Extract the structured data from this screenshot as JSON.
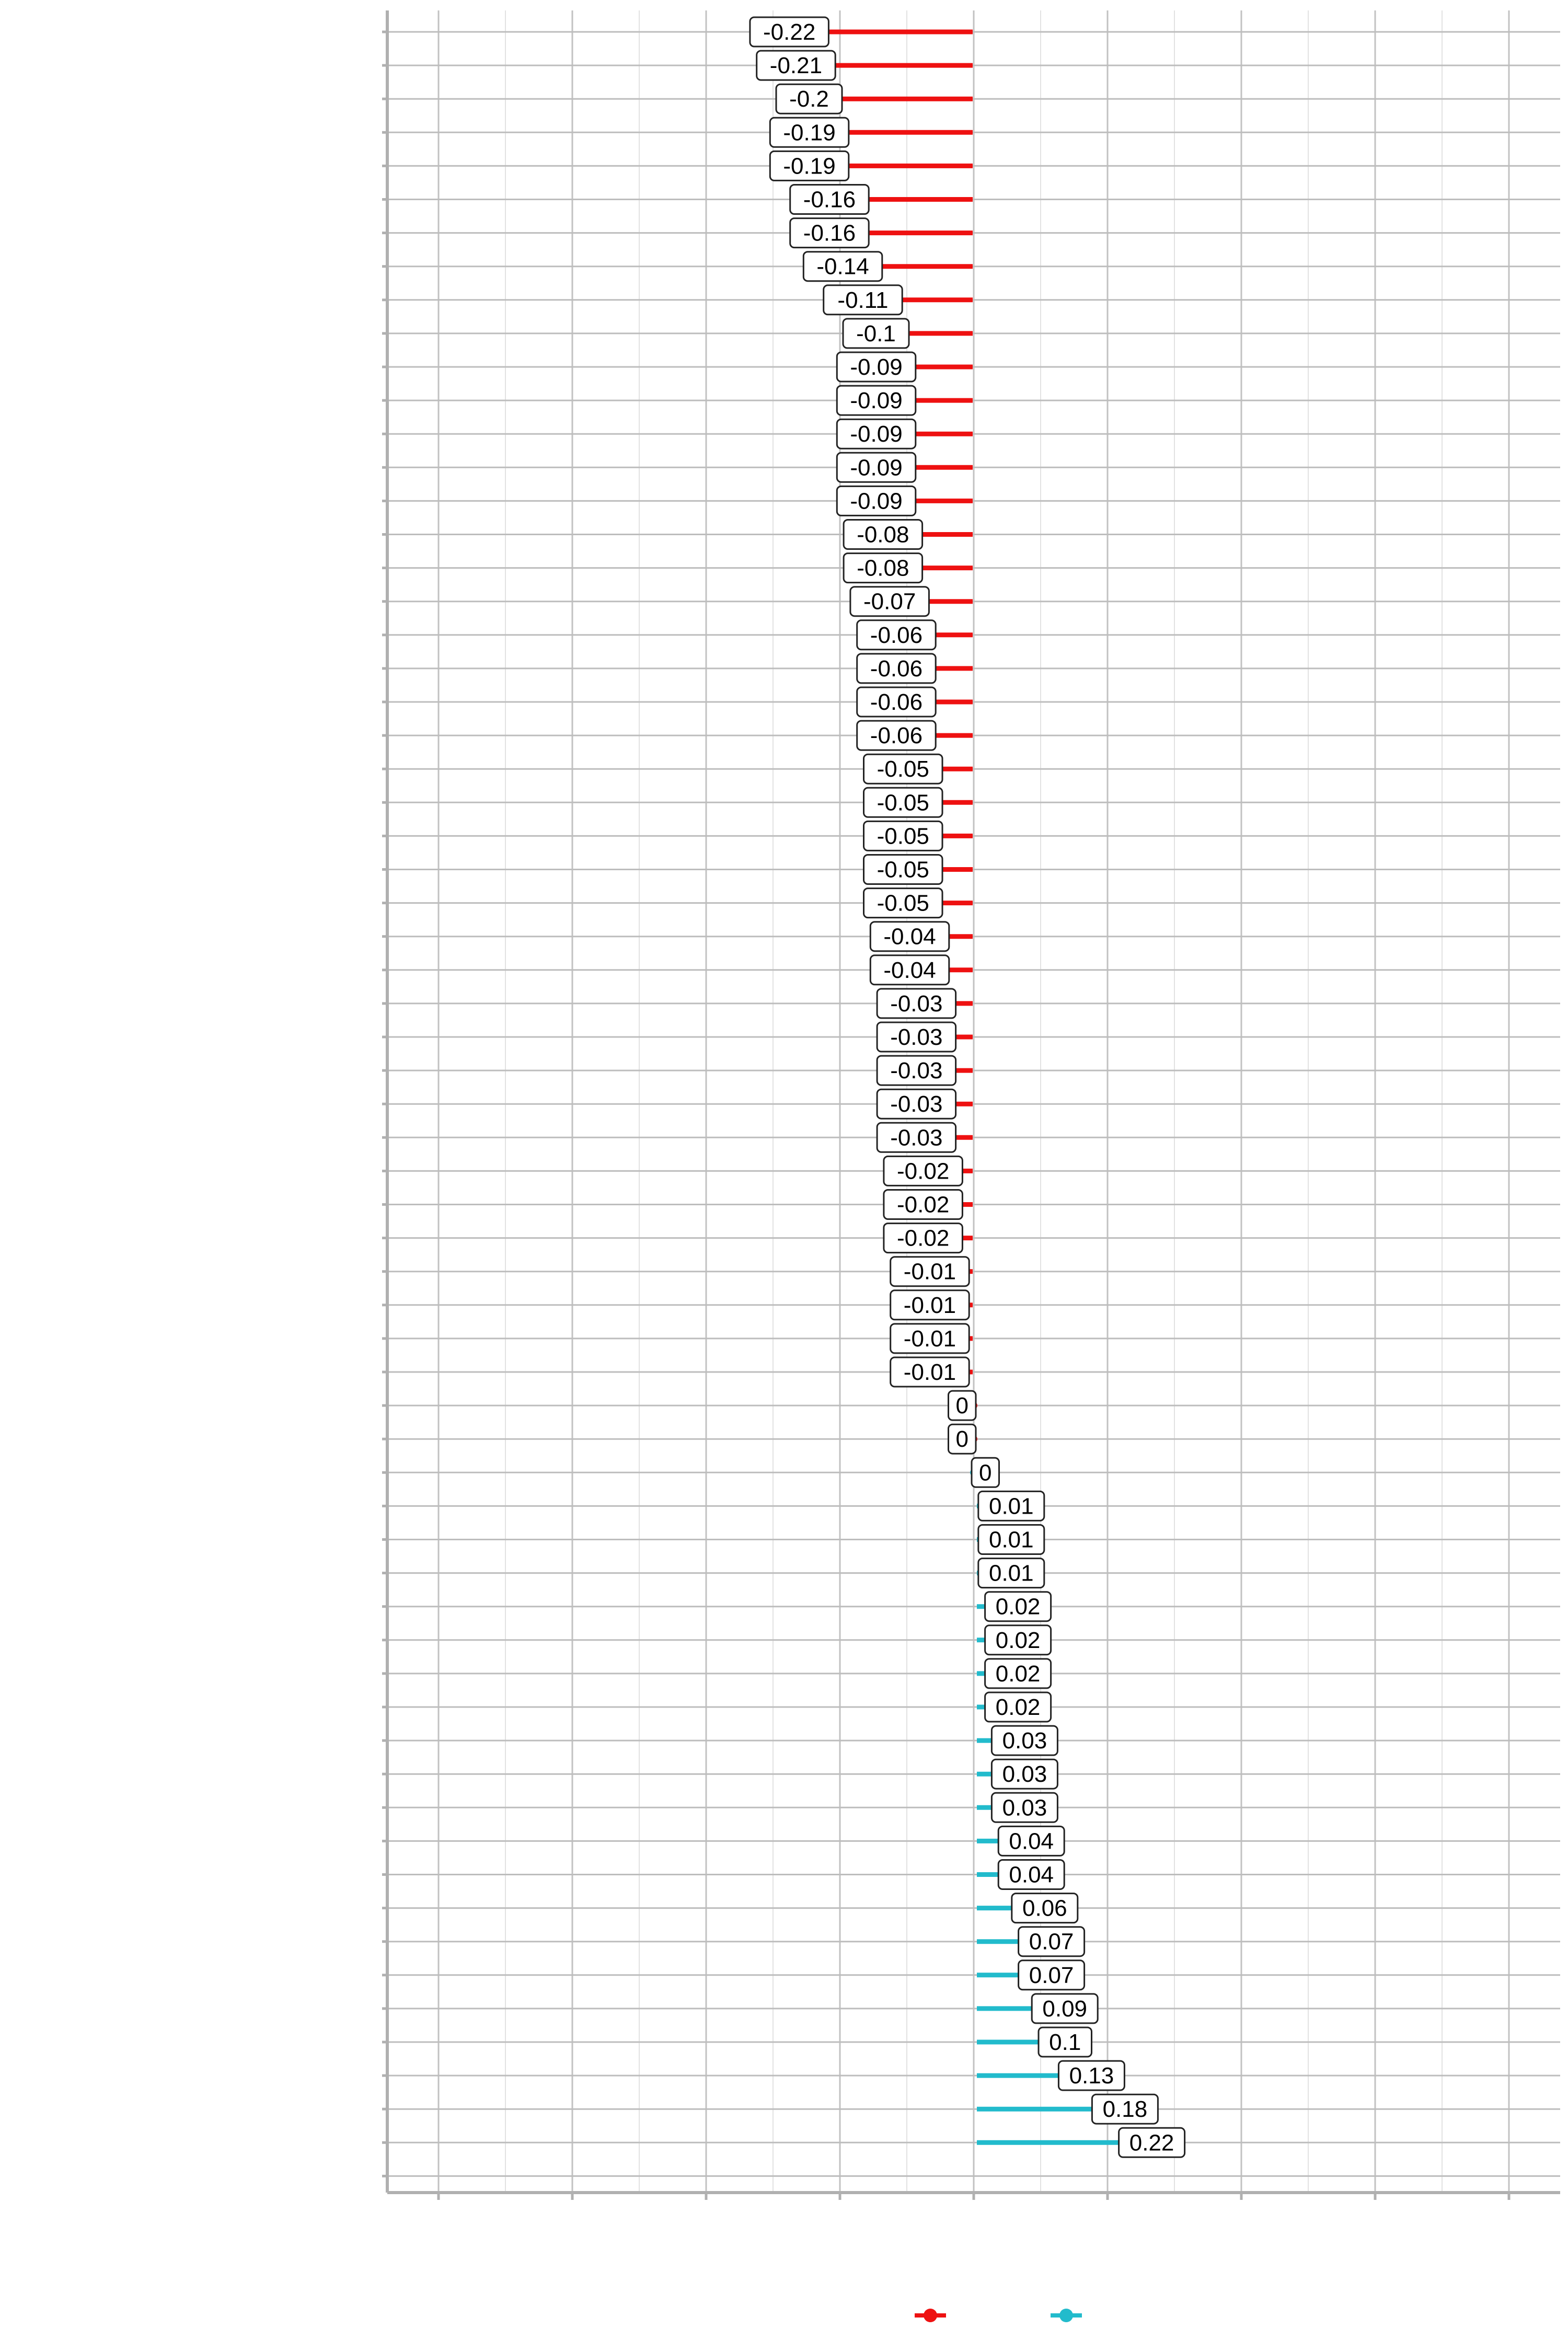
{
  "chart_data": {
    "type": "lollipop",
    "orientation": "horizontal",
    "title": "",
    "xlabel": "",
    "ylabel": "",
    "xlim": [
      -1.0,
      1.0
    ],
    "values": [
      -0.22,
      -0.21,
      -0.2,
      -0.19,
      -0.19,
      -0.16,
      -0.16,
      -0.14,
      -0.11,
      -0.1,
      -0.09,
      -0.09,
      -0.09,
      -0.09,
      -0.09,
      -0.08,
      -0.08,
      -0.07,
      -0.06,
      -0.06,
      -0.06,
      -0.06,
      -0.05,
      -0.05,
      -0.05,
      -0.05,
      -0.05,
      -0.04,
      -0.04,
      -0.03,
      -0.03,
      -0.03,
      -0.03,
      -0.03,
      -0.02,
      -0.02,
      -0.02,
      -0.01,
      -0.01,
      -0.01,
      -0.01,
      0,
      0,
      0,
      0.01,
      0.01,
      0.01,
      0.02,
      0.02,
      0.02,
      0.02,
      0.03,
      0.03,
      0.03,
      0.04,
      0.04,
      0.06,
      0.07,
      0.07,
      0.09,
      0.1,
      0.13,
      0.18,
      0.22
    ],
    "labels": [
      "-0.22",
      "-0.21",
      "-0.2",
      "-0.19",
      "-0.19",
      "-0.16",
      "-0.16",
      "-0.14",
      "-0.11",
      "-0.1",
      "-0.09",
      "-0.09",
      "-0.09",
      "-0.09",
      "-0.09",
      "-0.08",
      "-0.08",
      "-0.07",
      "-0.06",
      "-0.06",
      "-0.06",
      "-0.06",
      "-0.05",
      "-0.05",
      "-0.05",
      "-0.05",
      "-0.05",
      "-0.04",
      "-0.04",
      "-0.03",
      "-0.03",
      "-0.03",
      "-0.03",
      "-0.03",
      "-0.02",
      "-0.02",
      "-0.02",
      "-0.01",
      "-0.01",
      "-0.01",
      "-0.01",
      "0",
      "0",
      "0",
      "0.01",
      "0.01",
      "0.01",
      "0.02",
      "0.02",
      "0.02",
      "0.02",
      "0.03",
      "0.03",
      "0.03",
      "0.04",
      "0.04",
      "0.06",
      "0.07",
      "0.07",
      "0.09",
      "0.1",
      "0.13",
      "0.18",
      "0.22"
    ],
    "negative_count": 43,
    "colors": {
      "negative": "#ee1111",
      "positive": "#22bbcc"
    },
    "grid": true,
    "legend": {
      "placement": "bottom",
      "entries": 2
    },
    "x_gridlines": [
      -0.8,
      -0.6,
      -0.4,
      -0.2,
      0.0,
      0.2,
      0.4,
      0.6,
      0.8
    ]
  }
}
